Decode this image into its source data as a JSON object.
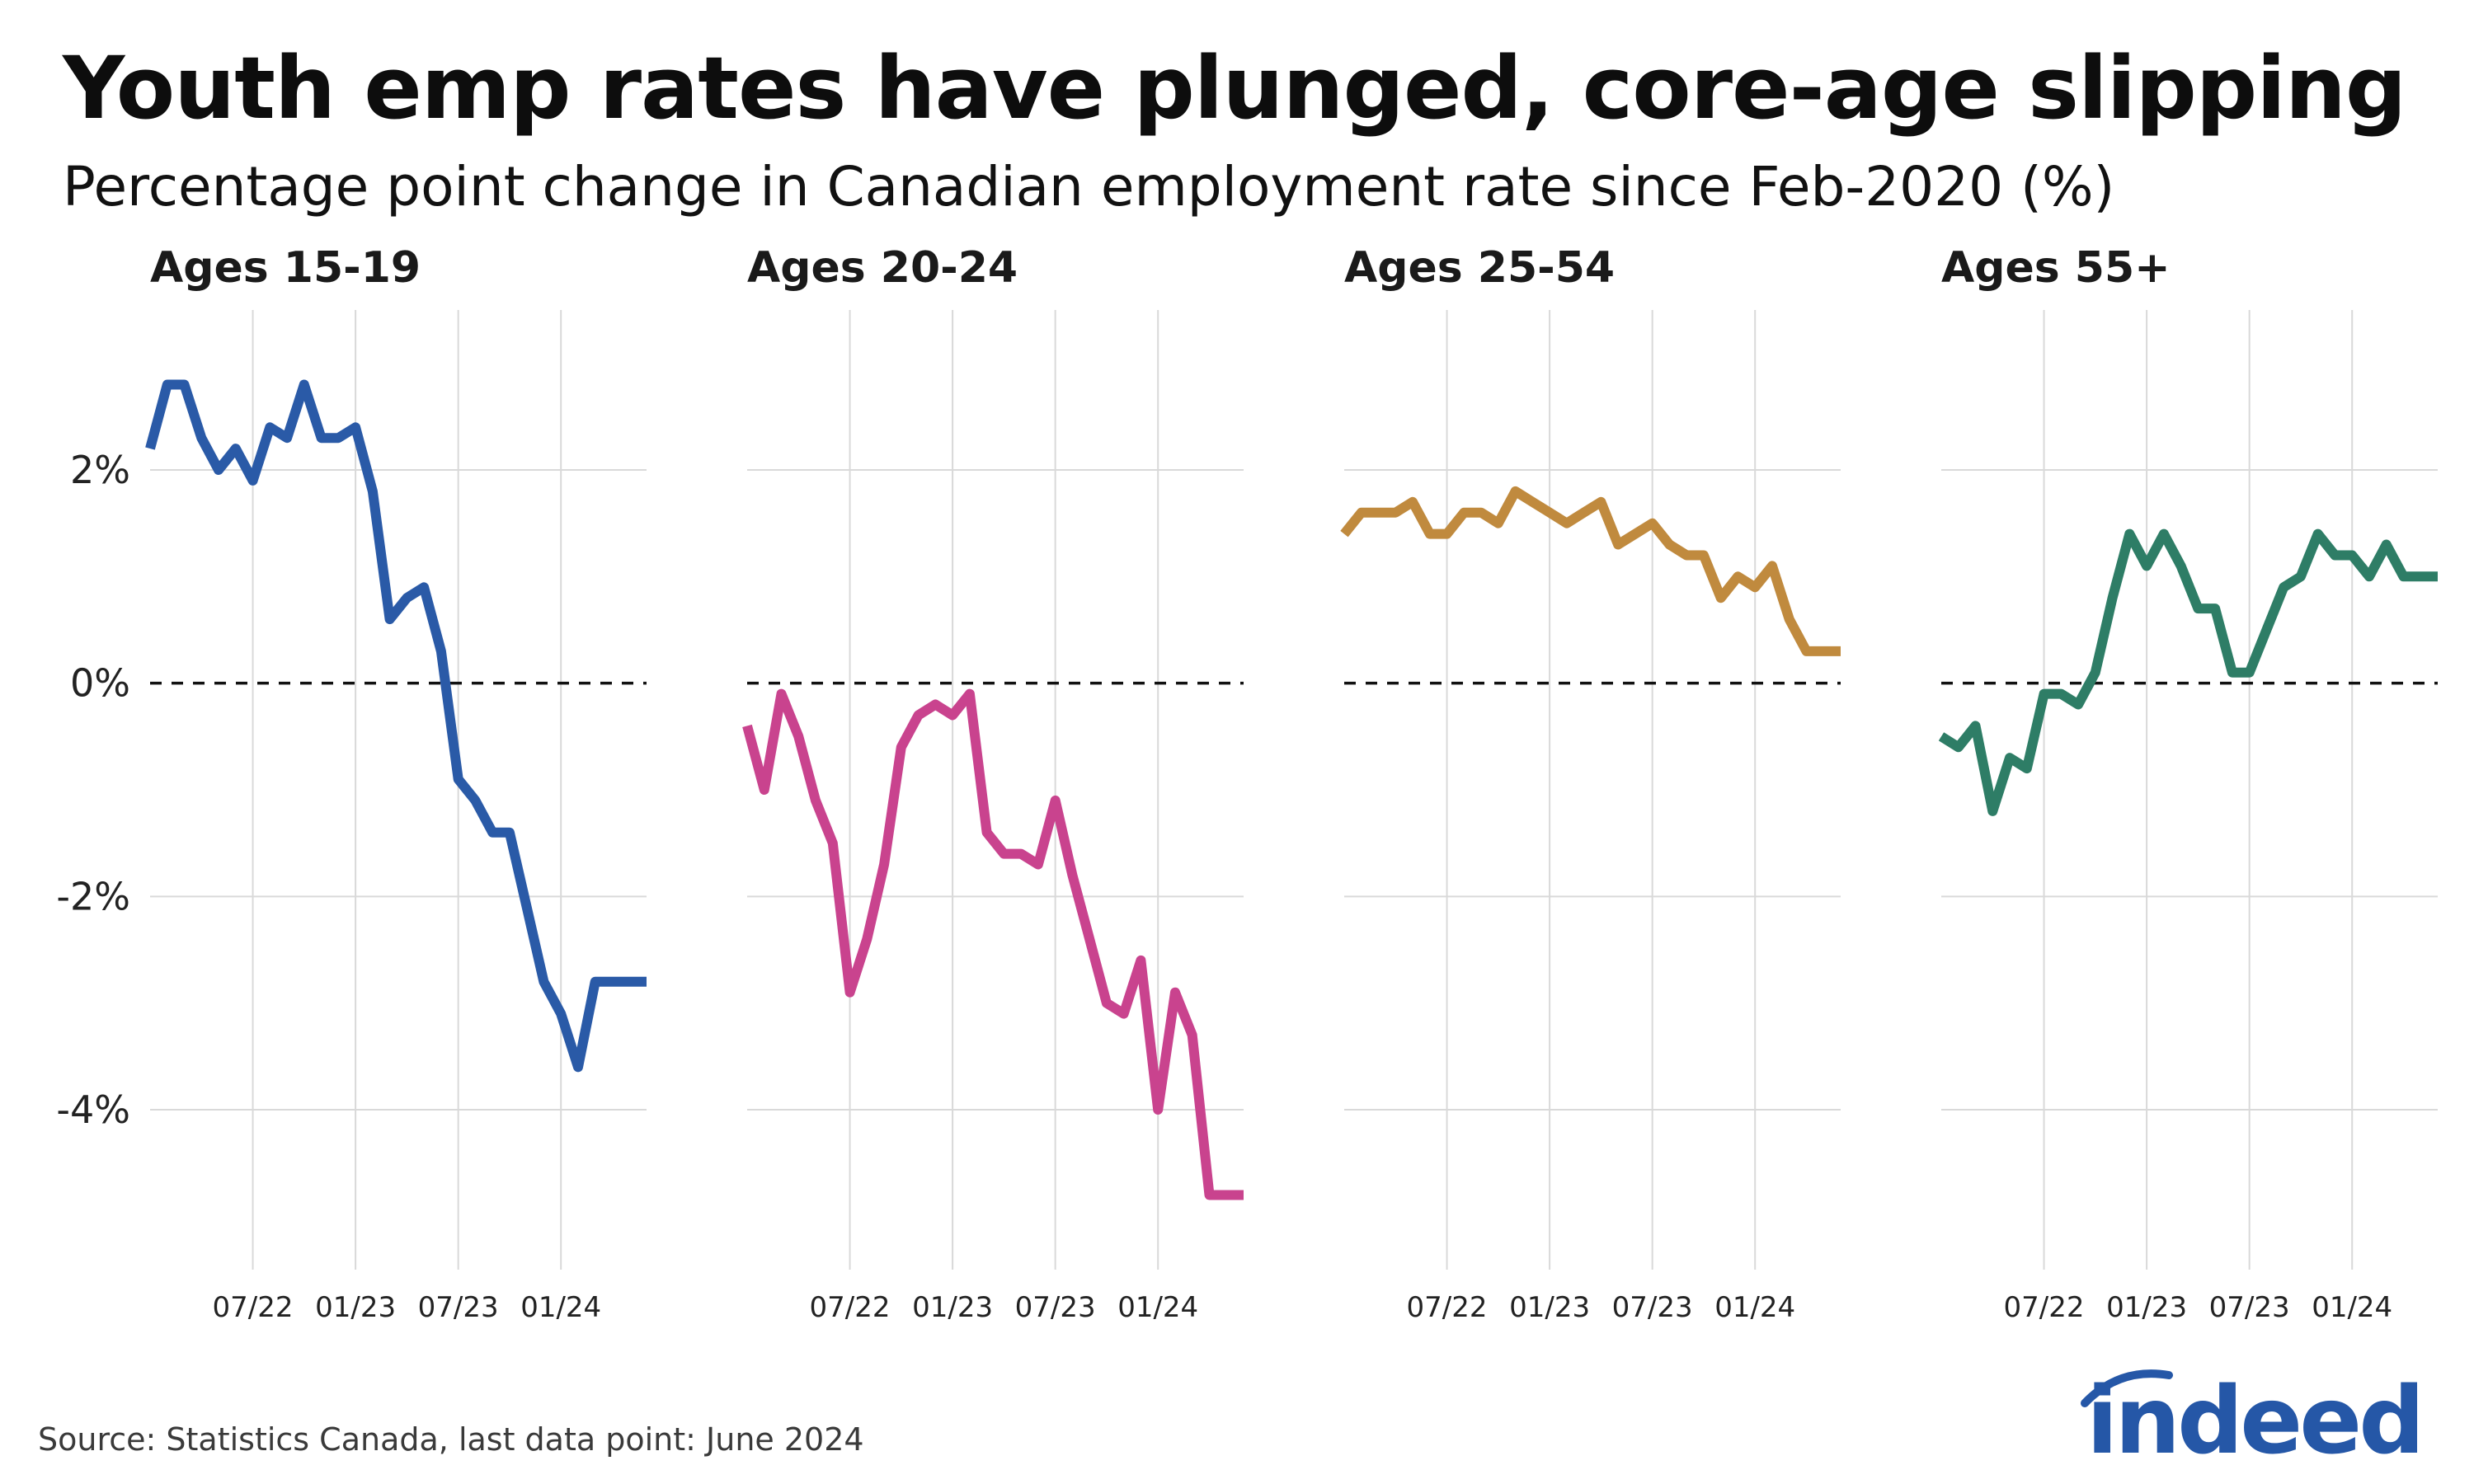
{
  "title": "Youth emp rates have plunged, core-age slipping",
  "subtitle": "Percentage point change in Canadian employment rate since Feb-2020 (%)",
  "source": "Source: Statistics Canada, last data point: June 2024",
  "logo_text": "indeed",
  "colors": {
    "grid": "#d9d9d9",
    "zero_line": "#111111",
    "logo": "#2557a7"
  },
  "chart_data": {
    "type": "line",
    "layout": "small-multiples",
    "x_tick_labels": [
      "07/22",
      "01/23",
      "07/23",
      "01/24"
    ],
    "y_tick_labels": [
      "2%",
      "0%",
      "-2%",
      "-4%"
    ],
    "y_ticks": [
      2,
      0,
      -2,
      -4
    ],
    "ylim": [
      -5.5,
      3.5
    ],
    "xlim": [
      "2022-01",
      "2024-06"
    ],
    "grid": true,
    "reference_line": {
      "y": 0,
      "style": "dashed"
    },
    "panels": [
      {
        "name": "Ages 15-19",
        "color": "#2a5aa7",
        "x": [
          "2022-01",
          "2022-02",
          "2022-03",
          "2022-04",
          "2022-05",
          "2022-06",
          "2022-07",
          "2022-08",
          "2022-09",
          "2022-10",
          "2022-11",
          "2022-12",
          "2023-01",
          "2023-02",
          "2023-03",
          "2023-04",
          "2023-05",
          "2023-06",
          "2023-07",
          "2023-08",
          "2023-09",
          "2023-10",
          "2023-11",
          "2023-12",
          "2024-01",
          "2024-02",
          "2024-03",
          "2024-04",
          "2024-05",
          "2024-06"
        ],
        "values": [
          2.2,
          2.8,
          2.8,
          2.3,
          2.0,
          2.2,
          1.9,
          2.4,
          2.3,
          2.8,
          2.3,
          2.3,
          2.4,
          1.8,
          0.6,
          0.8,
          0.9,
          0.3,
          -0.9,
          -1.1,
          -1.4,
          -1.4,
          -2.1,
          -2.8,
          -3.1,
          -3.6,
          -2.8,
          -2.8,
          -2.8,
          -2.8
        ]
      },
      {
        "name": "Ages 20-24",
        "color": "#c9438e",
        "x": [
          "2022-01",
          "2022-02",
          "2022-03",
          "2022-04",
          "2022-05",
          "2022-06",
          "2022-07",
          "2022-08",
          "2022-09",
          "2022-10",
          "2022-11",
          "2022-12",
          "2023-01",
          "2023-02",
          "2023-03",
          "2023-04",
          "2023-05",
          "2023-06",
          "2023-07",
          "2023-08",
          "2023-09",
          "2023-10",
          "2023-11",
          "2023-12",
          "2024-01",
          "2024-02",
          "2024-03",
          "2024-04",
          "2024-05",
          "2024-06"
        ],
        "values": [
          -0.4,
          -1.0,
          -0.1,
          -0.5,
          -1.1,
          -1.5,
          -2.9,
          -2.4,
          -1.7,
          -0.6,
          -0.3,
          -0.2,
          -0.3,
          -0.1,
          -1.4,
          -1.6,
          -1.6,
          -1.7,
          -1.1,
          -1.8,
          -2.4,
          -3.0,
          -3.1,
          -2.6,
          -4.0,
          -2.9,
          -3.3,
          -4.8,
          -4.8,
          -4.8
        ]
      },
      {
        "name": "Ages 25-54",
        "color": "#c08a3e",
        "x": [
          "2022-01",
          "2022-02",
          "2022-03",
          "2022-04",
          "2022-05",
          "2022-06",
          "2022-07",
          "2022-08",
          "2022-09",
          "2022-10",
          "2022-11",
          "2022-12",
          "2023-01",
          "2023-02",
          "2023-03",
          "2023-04",
          "2023-05",
          "2023-06",
          "2023-07",
          "2023-08",
          "2023-09",
          "2023-10",
          "2023-11",
          "2023-12",
          "2024-01",
          "2024-02",
          "2024-03",
          "2024-04",
          "2024-05",
          "2024-06"
        ],
        "values": [
          1.4,
          1.6,
          1.6,
          1.6,
          1.7,
          1.4,
          1.4,
          1.6,
          1.6,
          1.5,
          1.8,
          1.7,
          1.6,
          1.5,
          1.6,
          1.7,
          1.3,
          1.4,
          1.5,
          1.3,
          1.2,
          1.2,
          0.8,
          1.0,
          0.9,
          1.1,
          0.6,
          0.3,
          0.3,
          0.3
        ]
      },
      {
        "name": "Ages 55+",
        "color": "#2e7d66",
        "x": [
          "2022-01",
          "2022-02",
          "2022-03",
          "2022-04",
          "2022-05",
          "2022-06",
          "2022-07",
          "2022-08",
          "2022-09",
          "2022-10",
          "2022-11",
          "2022-12",
          "2023-01",
          "2023-02",
          "2023-03",
          "2023-04",
          "2023-05",
          "2023-06",
          "2023-07",
          "2023-08",
          "2023-09",
          "2023-10",
          "2023-11",
          "2023-12",
          "2024-01",
          "2024-02",
          "2024-03",
          "2024-04",
          "2024-05",
          "2024-06"
        ],
        "values": [
          -0.5,
          -0.6,
          -0.4,
          -1.2,
          -0.7,
          -0.8,
          -0.1,
          -0.1,
          -0.2,
          0.1,
          0.8,
          1.4,
          1.1,
          1.4,
          1.1,
          0.7,
          0.7,
          0.1,
          0.1,
          0.5,
          0.9,
          1.0,
          1.4,
          1.2,
          1.2,
          1.0,
          1.3,
          1.0,
          1.0,
          1.0
        ]
      }
    ]
  }
}
